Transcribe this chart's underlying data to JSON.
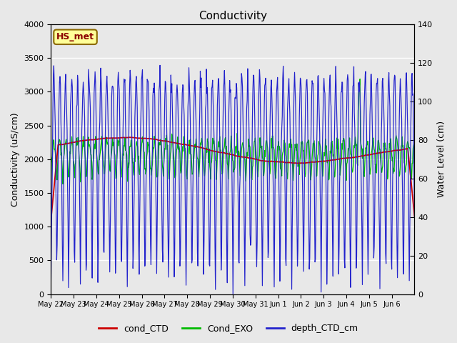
{
  "title": "Conductivity",
  "ylabel_left": "Conductivity (uS/cm)",
  "ylabel_right": "Water Level (cm)",
  "ylim_left": [
    0,
    4000
  ],
  "ylim_right": [
    0,
    140
  ],
  "background_color": "#e8e8e8",
  "xtick_labels": [
    "May 22",
    "May 23",
    "May 24",
    "May 25",
    "May 26",
    "May 27",
    "May 28",
    "May 29",
    "May 30",
    "May 31",
    "Jun 1",
    "Jun 2",
    "Jun 3",
    "Jun 4",
    "Jun 5",
    "Jun 6"
  ],
  "legend_entries": [
    "cond_CTD",
    "Cond_EXO",
    "depth_CTD_cm"
  ],
  "cond_ctd_color": "#cc0000",
  "cond_exo_color": "#00bb00",
  "depth_color": "#2222cc",
  "station_label": "HS_met",
  "station_label_color": "#8b0000",
  "station_label_bg": "#ffff99",
  "station_label_border": "#8b6900"
}
